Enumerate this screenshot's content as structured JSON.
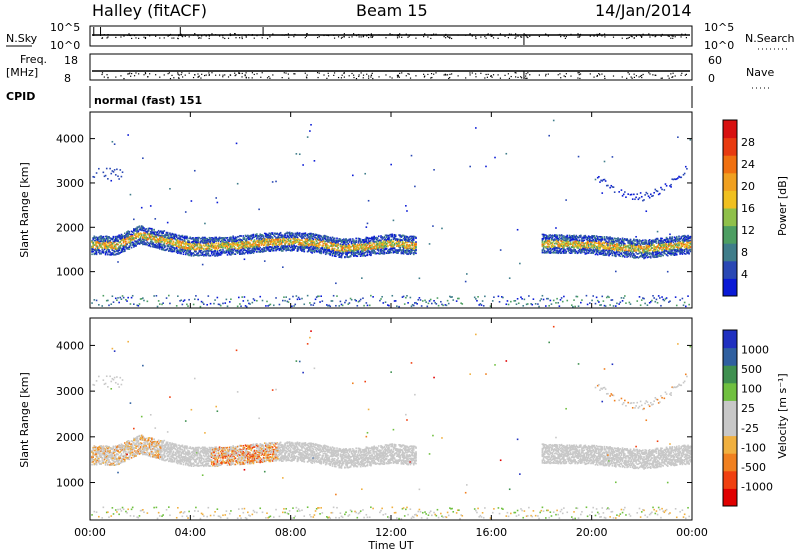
{
  "header": {
    "station": "Halley (fitACF)",
    "beam": "Beam 15",
    "date": "14/Jan/2014"
  },
  "top_panels": {
    "nsky_label": "N.Sky",
    "nsearch_label": "N.Search",
    "nsky_ticks": [
      "10^5",
      "10^0"
    ],
    "nsearch_ticks": [
      "10^5",
      "10^0"
    ],
    "freq_label": "Freq.",
    "freq_unit": "[MHz]",
    "freq_ticks": [
      "18",
      "8"
    ],
    "nave_label": "Nave",
    "nave_ticks": [
      "60",
      "0"
    ],
    "cpid_label": "CPID",
    "cpid_value": "normal (fast) 151"
  },
  "chart_data": [
    {
      "type": "heatmap",
      "title": "",
      "quantity": "Power",
      "ylabel": "Slant Range [km]",
      "xlabel": "",
      "ylim": [
        180,
        4600
      ],
      "yticks": [
        "1000",
        "2000",
        "3000",
        "4000"
      ],
      "colorbar": {
        "label": "Power [dB]",
        "ticks": [
          "4",
          "8",
          "12",
          "16",
          "20",
          "24",
          "28"
        ],
        "colors": [
          "#0a1ad6",
          "#2a48b4",
          "#3f7d8a",
          "#4d9e62",
          "#8fc04a",
          "#f0c020",
          "#f0a020",
          "#f07010",
          "#e83a10",
          "#d81010"
        ]
      },
      "echo_band_center_km": [
        {
          "hour": 0.0,
          "range": 1620
        },
        {
          "hour": 1.0,
          "range": 1600
        },
        {
          "hour": 2.0,
          "range": 1850
        },
        {
          "hour": 3.0,
          "range": 1700
        },
        {
          "hour": 4.0,
          "range": 1580
        },
        {
          "hour": 5.0,
          "range": 1580
        },
        {
          "hour": 6.0,
          "range": 1620
        },
        {
          "hour": 7.0,
          "range": 1680
        },
        {
          "hour": 8.0,
          "range": 1700
        },
        {
          "hour": 9.0,
          "range": 1660
        },
        {
          "hour": 10.0,
          "range": 1540
        },
        {
          "hour": 11.0,
          "range": 1580
        },
        {
          "hour": 12.0,
          "range": 1650
        },
        {
          "hour": 13.0,
          "range": 1600
        },
        {
          "hour": 18.0,
          "range": 1650
        },
        {
          "hour": 20.0,
          "range": 1620
        },
        {
          "hour": 22.0,
          "range": 1520
        },
        {
          "hour": 24.0,
          "range": 1640
        }
      ]
    },
    {
      "type": "heatmap",
      "title": "",
      "quantity": "Velocity",
      "ylabel": "Slant Range [km]",
      "xlabel": "Time UT",
      "ylim": [
        180,
        4600
      ],
      "yticks": [
        "1000",
        "2000",
        "3000",
        "4000"
      ],
      "colorbar": {
        "label": "Velocity [m s⁻¹]",
        "ticks": [
          "-1000",
          "-500",
          "-100",
          "-25",
          "25",
          "100",
          "500",
          "1000"
        ],
        "colors": [
          "#e00000",
          "#f04010",
          "#f08020",
          "#f0b040",
          "#c8c8c8",
          "#c8c8c8",
          "#70c040",
          "#3f9050",
          "#3060a0",
          "#2030c0"
        ]
      },
      "xticks": [
        "00:00",
        "04:00",
        "08:00",
        "12:00",
        "16:00",
        "20:00",
        "00:00"
      ],
      "xlim_hours": [
        0,
        24
      ]
    }
  ]
}
